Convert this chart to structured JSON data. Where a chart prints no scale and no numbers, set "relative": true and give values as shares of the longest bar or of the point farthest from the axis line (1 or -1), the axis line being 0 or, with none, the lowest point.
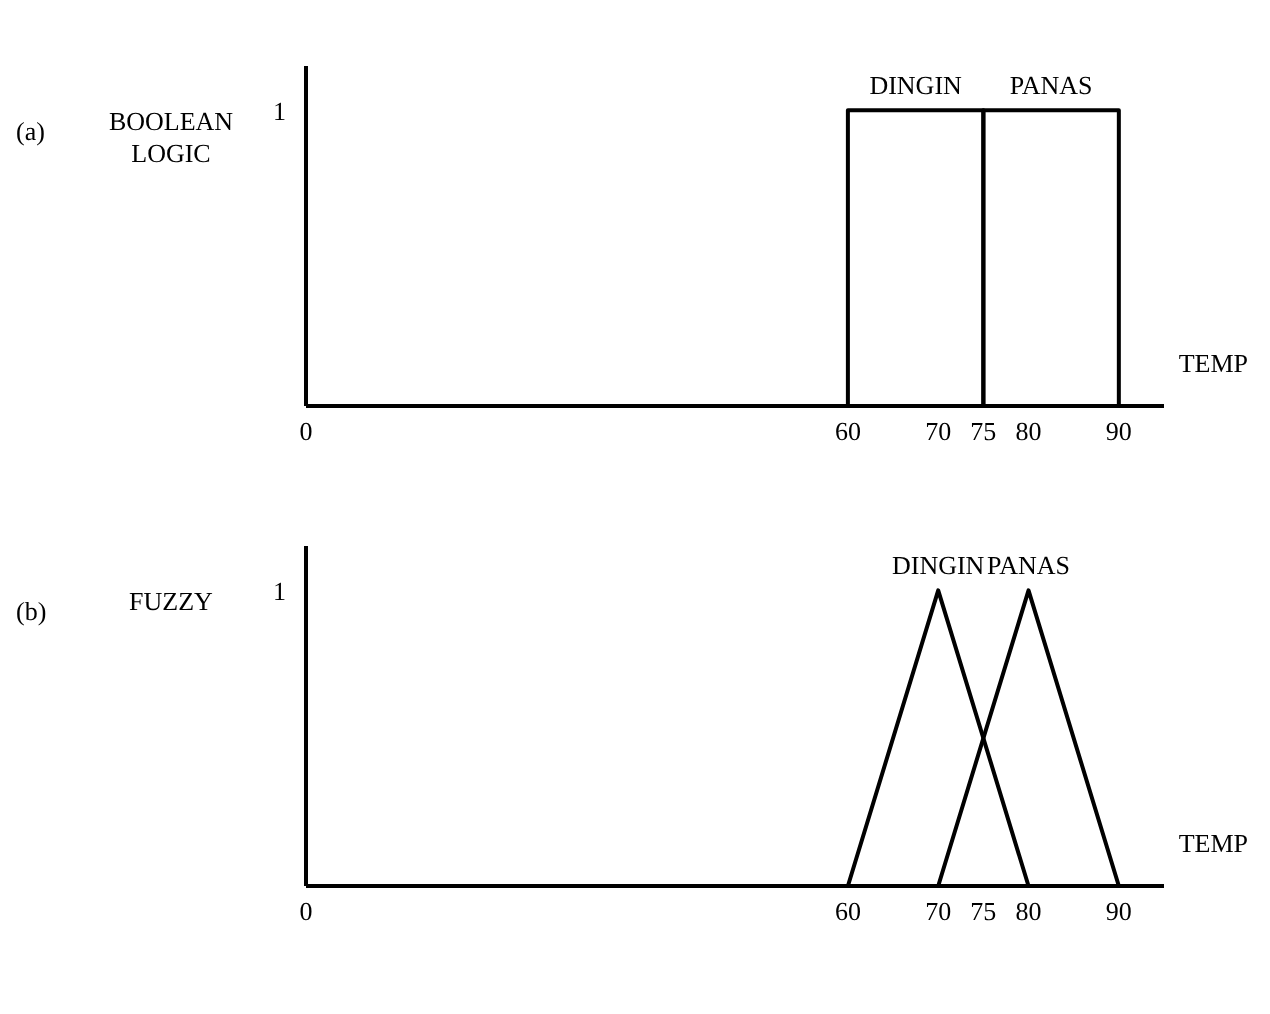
{
  "chart_data": [
    {
      "type": "line",
      "ylabel": "BOOLEAN LOGIC",
      "xlabel": "TEMP",
      "annotations": [
        "(a)",
        "1"
      ],
      "xlim": [
        0,
        95
      ],
      "xticks": [
        0,
        60,
        70,
        75,
        80,
        90
      ],
      "relative": true,
      "grid": false,
      "legend": false,
      "marker": "none",
      "series": [
        {
          "name": "DINGIN",
          "color": "#000000",
          "x": [
            60,
            60,
            75,
            75
          ],
          "values": [
            0,
            1,
            1,
            0
          ]
        },
        {
          "name": "PANAS",
          "color": "#000000",
          "x": [
            75,
            75,
            90,
            90
          ],
          "values": [
            0,
            1,
            1,
            0
          ]
        }
      ]
    },
    {
      "type": "line",
      "ylabel": "FUZZY",
      "xlabel": "TEMP",
      "annotations": [
        "(b)",
        "1"
      ],
      "xlim": [
        0,
        95
      ],
      "xticks": [
        0,
        60,
        70,
        75,
        80,
        90
      ],
      "relative": true,
      "grid": false,
      "legend": false,
      "marker": "none",
      "series": [
        {
          "name": "DINGIN",
          "color": "#000000",
          "x": [
            60,
            70,
            80
          ],
          "values": [
            0,
            1,
            0
          ]
        },
        {
          "name": "PANAS",
          "color": "#000000",
          "x": [
            70,
            80,
            90
          ],
          "values": [
            0,
            1,
            0
          ]
        }
      ]
    }
  ]
}
